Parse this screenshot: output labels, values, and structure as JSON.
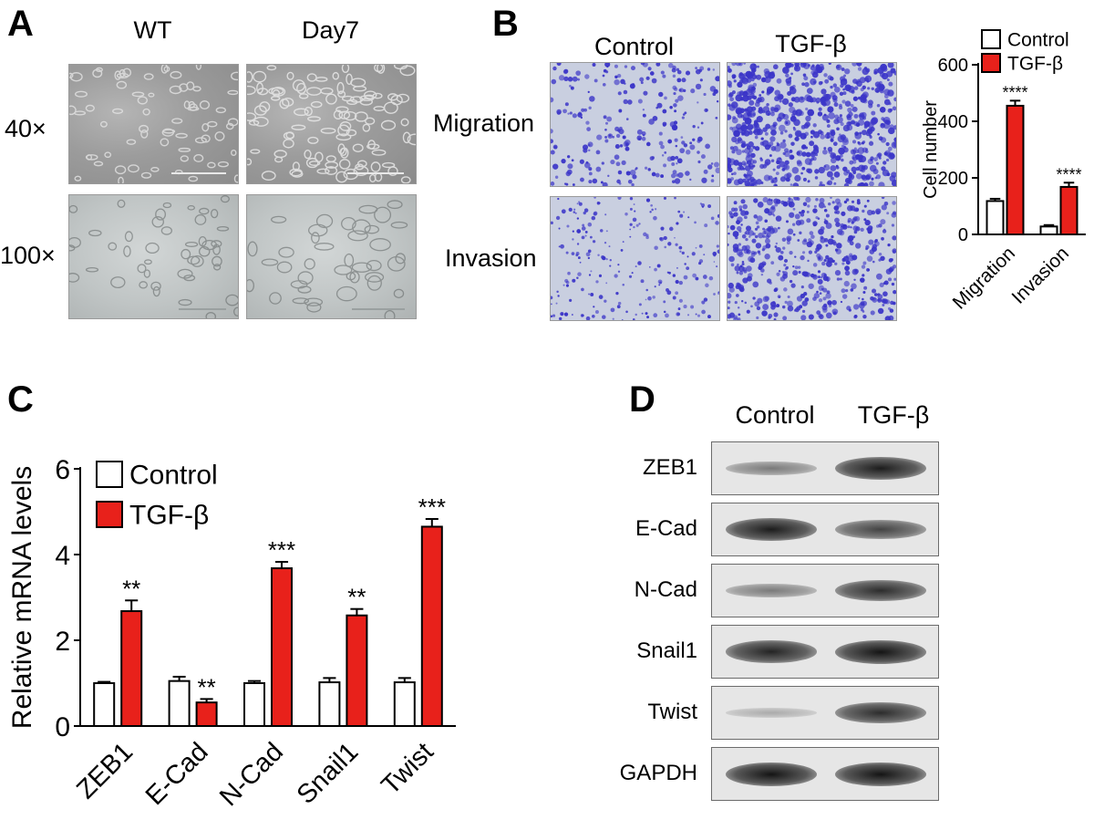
{
  "panels": {
    "a": {
      "letter": "A",
      "columns": [
        "WT",
        "Day7"
      ],
      "rows": [
        "40×",
        "100×"
      ]
    },
    "b": {
      "letter": "B",
      "columns": [
        "Control",
        "TGF-β"
      ],
      "rows": [
        "Migration",
        "Invasion"
      ]
    },
    "c": {
      "letter": "C"
    },
    "d": {
      "letter": "D",
      "columns": [
        "Control",
        "TGF-β"
      ],
      "rows": [
        "ZEB1",
        "E-Cad",
        "N-Cad",
        "Snail1",
        "Twist",
        "GAPDH"
      ],
      "band_intensity": {
        "ZEB1": [
          0.35,
          0.95
        ],
        "E-Cad": [
          0.95,
          0.7
        ],
        "N-Cad": [
          0.35,
          0.85
        ],
        "Snail1": [
          0.9,
          1.0
        ],
        "Twist": [
          0.05,
          0.85
        ],
        "GAPDH": [
          1.0,
          1.0
        ]
      }
    }
  },
  "colors": {
    "control": "#ffffff",
    "tgf": "#e8211b",
    "stain": "#3b35c8"
  },
  "chart_data": [
    {
      "type": "bar",
      "panel": "B",
      "categories": [
        "Migration",
        "Invasion"
      ],
      "series": [
        {
          "name": "Control",
          "values": [
            118,
            28
          ],
          "errors": [
            8,
            5
          ]
        },
        {
          "name": "TGF-β",
          "values": [
            455,
            168
          ],
          "errors": [
            18,
            15
          ]
        }
      ],
      "significance": [
        "****",
        "****"
      ],
      "ylabel": "Cell number",
      "ylim": [
        0,
        600
      ],
      "yticks": [
        0,
        200,
        400,
        600
      ],
      "legend": "top-right"
    },
    {
      "type": "bar",
      "panel": "C",
      "categories": [
        "ZEB1",
        "E-Cad",
        "N-Cad",
        "Snail1",
        "Twist"
      ],
      "series": [
        {
          "name": "Control",
          "values": [
            1.0,
            1.05,
            1.0,
            1.02,
            1.02
          ],
          "errors": [
            0.03,
            0.1,
            0.05,
            0.1,
            0.1
          ]
        },
        {
          "name": "TGF-β",
          "values": [
            2.68,
            0.55,
            3.68,
            2.58,
            4.65
          ],
          "errors": [
            0.25,
            0.08,
            0.15,
            0.15,
            0.18
          ]
        }
      ],
      "significance": [
        "**",
        "**",
        "***",
        "**",
        "***"
      ],
      "ylabel": "Relative mRNA  levels",
      "ylim": [
        0,
        6
      ],
      "yticks": [
        0,
        2,
        4,
        6
      ],
      "legend": "top-left"
    }
  ]
}
